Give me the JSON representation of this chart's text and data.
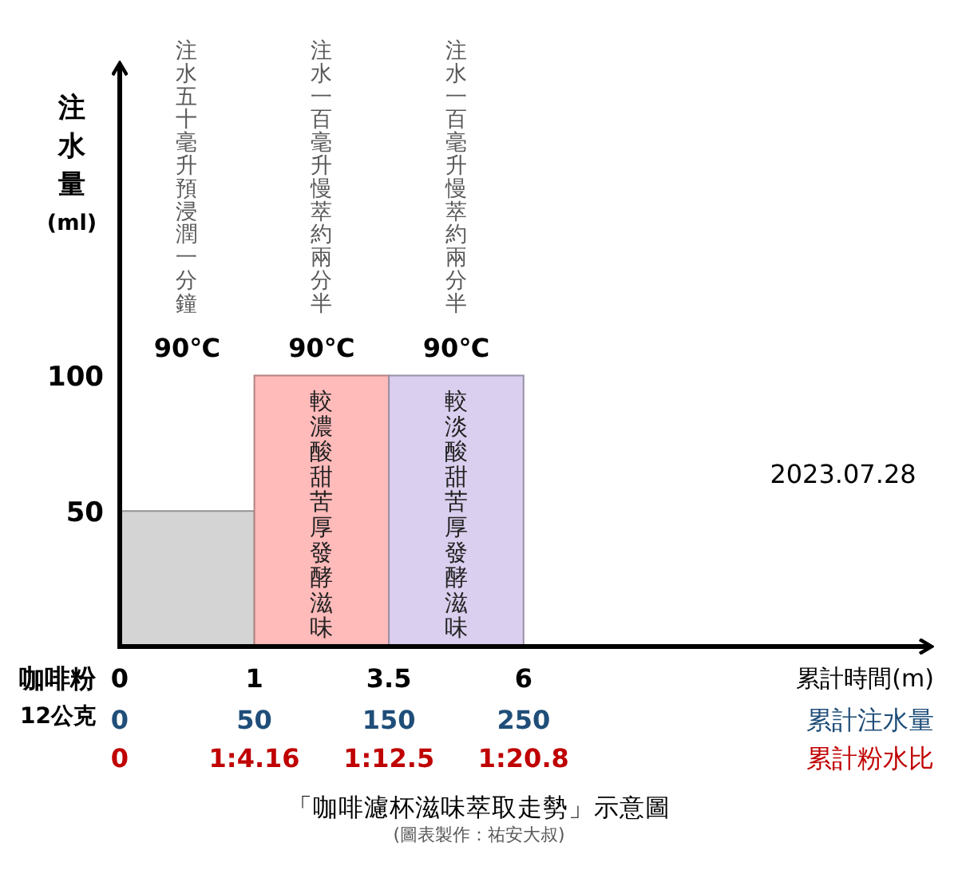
{
  "chart_data": {
    "type": "bar",
    "title": "「咖啡濾杯滋味萃取走勢」示意圖",
    "subtitle": "(圖表製作：祐安大叔)",
    "ylabel": "注水量(ml)",
    "categories": [
      "注水五十毫升預浸潤一分鐘",
      "注水一百毫升慢萃約兩分半",
      "注水一百毫升慢萃約兩分半"
    ],
    "values": [
      50,
      100,
      100
    ],
    "colors": [
      "#d4d4d4",
      "#ffbaba",
      "#dacfee"
    ],
    "ylim": [
      0,
      215
    ],
    "yticks": [
      50,
      100
    ],
    "annotations": [
      "90℃",
      "90℃",
      "90℃",
      "較濃酸甜苦厚發酵滋味",
      "較淡酸甜苦厚發酵滋味",
      "2023.07.28",
      "咖啡粉",
      "12公克",
      "0",
      "1",
      "3.5",
      "6",
      "累計時間(m)",
      "0",
      "50",
      "150",
      "250",
      "累計注水量",
      "0",
      "1:4.16",
      "1:12.5",
      "1:20.8",
      "累計粉水比"
    ]
  }
}
